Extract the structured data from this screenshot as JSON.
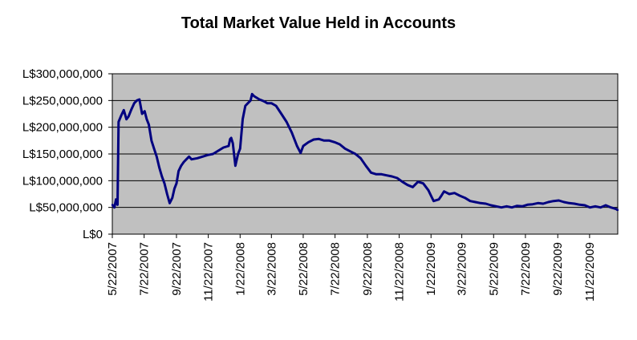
{
  "chart_data": {
    "type": "line",
    "title": "Total Market Value Held in Accounts",
    "xlabel": "",
    "ylabel": "",
    "x_range": [
      "5/22/2007",
      "1/15/2010"
    ],
    "ylim": [
      0,
      300000000
    ],
    "y_ticks": [
      "L$0",
      "L$50,000,000",
      "L$100,000,000",
      "L$150,000,000",
      "L$200,000,000",
      "L$250,000,000",
      "L$300,000,000"
    ],
    "x_ticks": [
      "5/22/2007",
      "7/22/2007",
      "9/22/2007",
      "11/22/2007",
      "1/22/2008",
      "3/22/2008",
      "5/22/2008",
      "7/22/2008",
      "9/22/2008",
      "11/22/2008",
      "1/22/2009",
      "3/22/2009",
      "5/22/2009",
      "7/22/2009",
      "9/22/2009",
      "11/22/2009"
    ],
    "grid": true,
    "plot_background": "#c0c0c0",
    "line_color": "#000080",
    "series": [
      {
        "x": [
          "2007-05-22",
          "2007-05-26",
          "2007-05-29",
          "2007-06-01",
          "2007-06-03",
          "2007-06-08",
          "2007-06-13",
          "2007-06-18",
          "2007-06-22",
          "2007-06-27",
          "2007-07-03",
          "2007-07-08",
          "2007-07-13",
          "2007-07-18",
          "2007-07-23",
          "2007-07-27",
          "2007-07-31",
          "2007-08-05",
          "2007-08-10",
          "2007-08-15",
          "2007-08-20",
          "2007-08-25",
          "2007-08-30",
          "2007-09-04",
          "2007-09-09",
          "2007-09-14",
          "2007-09-18",
          "2007-09-22",
          "2007-09-26",
          "2007-10-01",
          "2007-10-06",
          "2007-10-11",
          "2007-10-16",
          "2007-10-21",
          "2007-11-01",
          "2007-11-11",
          "2007-11-21",
          "2007-12-01",
          "2007-12-11",
          "2007-12-21",
          "2007-12-31",
          "2008-01-03",
          "2008-01-05",
          "2008-01-08",
          "2008-01-13",
          "2008-01-18",
          "2008-01-22",
          "2008-01-27",
          "2008-02-01",
          "2008-02-06",
          "2008-02-11",
          "2008-02-14",
          "2008-02-18",
          "2008-02-23",
          "2008-02-28",
          "2008-03-04",
          "2008-03-09",
          "2008-03-14",
          "2008-03-22",
          "2008-03-31",
          "2008-04-10",
          "2008-04-20",
          "2008-04-30",
          "2008-05-10",
          "2008-05-17",
          "2008-05-22",
          "2008-06-01",
          "2008-06-11",
          "2008-06-21",
          "2008-07-01",
          "2008-07-11",
          "2008-07-21",
          "2008-07-31",
          "2008-08-10",
          "2008-08-20",
          "2008-08-30",
          "2008-09-09",
          "2008-09-19",
          "2008-09-29",
          "2008-10-09",
          "2008-10-19",
          "2008-10-29",
          "2008-11-08",
          "2008-11-18",
          "2008-11-28",
          "2008-12-08",
          "2008-12-18",
          "2008-12-28",
          "2009-01-07",
          "2009-01-17",
          "2009-01-22",
          "2009-01-27",
          "2009-02-06",
          "2009-02-11",
          "2009-02-16",
          "2009-02-26",
          "2009-03-08",
          "2009-03-18",
          "2009-03-28",
          "2009-04-07",
          "2009-04-17",
          "2009-04-27",
          "2009-05-07",
          "2009-05-17",
          "2009-05-27",
          "2009-06-06",
          "2009-06-16",
          "2009-06-26",
          "2009-07-06",
          "2009-07-16",
          "2009-07-26",
          "2009-08-05",
          "2009-08-15",
          "2009-08-25",
          "2009-09-04",
          "2009-09-14",
          "2009-09-24",
          "2009-10-04",
          "2009-10-14",
          "2009-10-24",
          "2009-11-03",
          "2009-11-13",
          "2009-11-23",
          "2009-12-03",
          "2009-12-13",
          "2009-12-23",
          "2010-01-02",
          "2010-01-12",
          "2010-01-15"
        ],
        "y": [
          55000000,
          50000000,
          65000000,
          55000000,
          210000000,
          222000000,
          232000000,
          215000000,
          220000000,
          232000000,
          245000000,
          250000000,
          252000000,
          225000000,
          230000000,
          215000000,
          205000000,
          175000000,
          160000000,
          145000000,
          125000000,
          108000000,
          95000000,
          75000000,
          58000000,
          68000000,
          85000000,
          95000000,
          118000000,
          128000000,
          135000000,
          140000000,
          145000000,
          140000000,
          142000000,
          145000000,
          148000000,
          150000000,
          156000000,
          162000000,
          165000000,
          178000000,
          180000000,
          170000000,
          128000000,
          150000000,
          160000000,
          215000000,
          240000000,
          245000000,
          250000000,
          262000000,
          258000000,
          255000000,
          252000000,
          250000000,
          248000000,
          245000000,
          245000000,
          240000000,
          225000000,
          210000000,
          190000000,
          165000000,
          152000000,
          165000000,
          172000000,
          177000000,
          178000000,
          175000000,
          175000000,
          172000000,
          168000000,
          160000000,
          155000000,
          150000000,
          142000000,
          128000000,
          115000000,
          112000000,
          112000000,
          110000000,
          108000000,
          105000000,
          98000000,
          92000000,
          88000000,
          98000000,
          95000000,
          82000000,
          72000000,
          62000000,
          65000000,
          72000000,
          80000000,
          75000000,
          77000000,
          72000000,
          68000000,
          62000000,
          60000000,
          58000000,
          57000000,
          54000000,
          52000000,
          50000000,
          52000000,
          50000000,
          53000000,
          52000000,
          55000000,
          56000000,
          58000000,
          57000000,
          60000000,
          62000000,
          63000000,
          60000000,
          58000000,
          57000000,
          55000000,
          54000000,
          50000000,
          52000000,
          50000000,
          54000000,
          50000000,
          47000000,
          45000000
        ]
      }
    ]
  }
}
